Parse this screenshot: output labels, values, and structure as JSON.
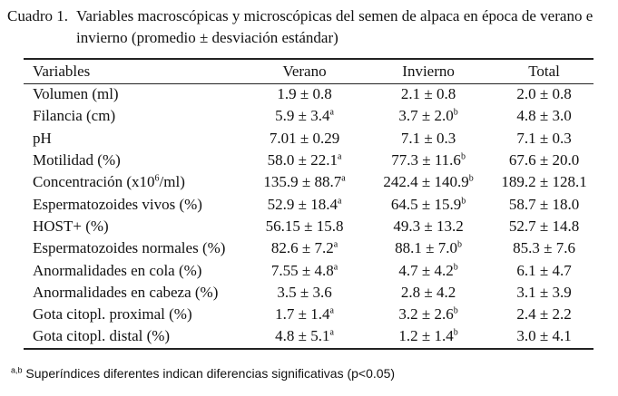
{
  "caption": {
    "number": "Cuadro 1.",
    "text": "Variables macroscópicas y microscópicas del semen de alpaca en época de verano e invierno (promedio ± desviación estándar)"
  },
  "table": {
    "headers": [
      "Variables",
      "Verano",
      "Invierno",
      "Total"
    ],
    "rows": [
      {
        "variable": "Volumen (ml)",
        "verano": "1.9 ± 0.8",
        "verano_sup": "",
        "invierno": "2.1 ± 0.8",
        "invierno_sup": "",
        "total": "2.0 ± 0.8"
      },
      {
        "variable": "Filancia (cm)",
        "verano": "5.9 ± 3.4",
        "verano_sup": "a",
        "invierno": "3.7 ± 2.0",
        "invierno_sup": "b",
        "total": "4.8 ± 3.0"
      },
      {
        "variable": "pH",
        "verano": "7.01 ± 0.29",
        "verano_sup": "",
        "invierno": "7.1 ± 0.3",
        "invierno_sup": "",
        "total": "7.1 ± 0.3"
      },
      {
        "variable": "Motilidad (%)",
        "verano": "58.0 ± 22.1",
        "verano_sup": "a",
        "invierno": "77.3 ± 11.6",
        "invierno_sup": "b",
        "total": "67.6 ± 20.0"
      },
      {
        "variable": "Concentración (x10",
        "variable_sup": "6",
        "variable_tail": "/ml)",
        "verano": "135.9 ± 88.7",
        "verano_sup": "a",
        "invierno": "242.4 ± 140.9",
        "invierno_sup": "b",
        "total": "189.2 ± 128.1"
      },
      {
        "variable": "Espermatozoides vivos (%)",
        "verano": "52.9 ± 18.4",
        "verano_sup": "a",
        "invierno": "64.5 ± 15.9",
        "invierno_sup": "b",
        "total": "58.7 ± 18.0"
      },
      {
        "variable": "HOST+ (%)",
        "verano": "56.15 ± 15.8",
        "verano_sup": "",
        "invierno": "49.3 ± 13.2",
        "invierno_sup": "",
        "total": "52.7 ± 14.8"
      },
      {
        "variable": "Espermatozoides normales (%)",
        "verano": "82.6 ± 7.2",
        "verano_sup": "a",
        "invierno": "88.1 ± 7.0",
        "invierno_sup": "b",
        "total": "85.3 ± 7.6"
      },
      {
        "variable": "Anormalidades en cola (%)",
        "verano": "7.55 ± 4.8",
        "verano_sup": "a",
        "invierno": "4.7 ± 4.2",
        "invierno_sup": "b",
        "total": "6.1 ± 4.7"
      },
      {
        "variable": "Anormalidades en cabeza (%)",
        "verano": "3.5 ± 3.6",
        "verano_sup": "",
        "invierno": "2.8 ± 4.2",
        "invierno_sup": "",
        "total": "3.1 ± 3.9"
      },
      {
        "variable": "Gota citopl. proximal (%)",
        "verano": "1.7 ± 1.4",
        "verano_sup": "a",
        "invierno": "3.2 ± 2.6",
        "invierno_sup": "b",
        "total": "2.4 ± 2.2"
      },
      {
        "variable": "Gota citopl. distal (%)",
        "verano": "4.8 ± 5.1",
        "verano_sup": "a",
        "invierno": "1.2 ± 1.4",
        "invierno_sup": "b",
        "total": "3.0 ± 4.1"
      }
    ]
  },
  "footnote": {
    "marks": "a,b",
    "text": " Superíndices diferentes indican diferencias significativas (p<0.05)"
  }
}
